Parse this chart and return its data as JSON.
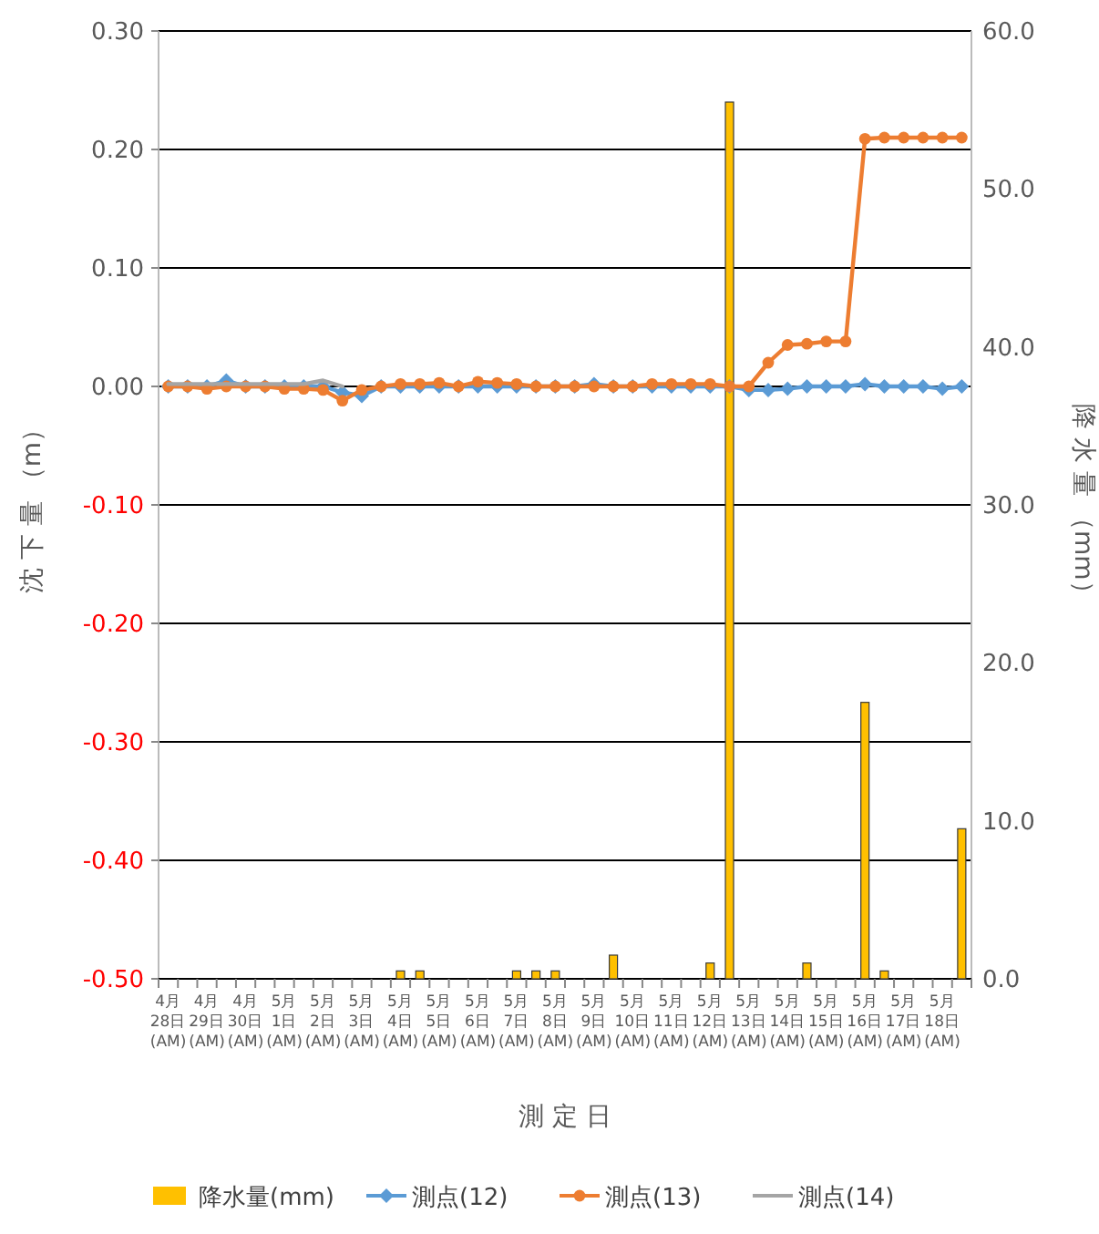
{
  "chart_data": {
    "type": "bar",
    "xlabel": "測 定 日",
    "ylabel": "沈 下 量 （m）",
    "y2label": "降 水 量 （mm）",
    "categories": [
      "4月 28日 (AM)",
      null,
      "4月 29日 (AM)",
      null,
      "4月 30日 (AM)",
      null,
      "5月 1日 (AM)",
      null,
      "5月 2日 (AM)",
      null,
      "5月 3日 (AM)",
      null,
      "5月 4日 (AM)",
      null,
      "5月 5日 (AM)",
      null,
      "5月 6日 (AM)",
      null,
      "5月 7日 (AM)",
      null,
      "5月 8日 (AM)",
      null,
      "5月 9日 (AM)",
      null,
      "5月 10日 (AM)",
      null,
      "5月 11日 (AM)",
      null,
      "5月 12日 (AM)",
      null,
      "5月 13日 (AM)",
      null,
      "5月 14日 (AM)",
      null,
      "5月 15日 (AM)",
      null,
      "5月 16日 (AM)",
      null,
      "5月 17日 (AM)",
      null,
      "5月 18日 (AM)",
      null
    ],
    "series": [
      {
        "name": "降水量(mm)",
        "axis": "y2",
        "color": "#ffc000",
        "values": [
          0,
          0,
          0,
          0,
          0,
          0,
          0,
          0,
          0,
          0,
          0,
          0,
          0.5,
          0.5,
          0,
          0,
          0,
          0,
          0.5,
          0.5,
          0.5,
          0,
          0,
          1.5,
          0,
          0,
          0,
          0,
          1,
          55.5,
          0,
          0,
          0,
          1,
          0,
          0,
          17.5,
          0.5,
          0,
          0,
          0,
          9.5
        ]
      },
      {
        "name": "測点(12)",
        "type": "line",
        "marker": "diamond",
        "color": "#5b9bd5",
        "values": [
          0,
          0,
          0,
          0.005,
          0,
          0,
          0,
          0,
          0,
          -0.005,
          -0.008,
          0,
          0,
          0,
          0,
          0,
          0,
          0,
          0,
          0,
          0,
          0,
          0.002,
          0,
          0,
          0,
          0,
          0,
          0,
          0,
          -0.003,
          -0.003,
          -0.002,
          0,
          0,
          0,
          0.002,
          0,
          0,
          0,
          -0.002,
          0
        ]
      },
      {
        "name": "測点(13)",
        "type": "line",
        "marker": "circle",
        "color": "#ed7d31",
        "values": [
          0,
          0,
          -0.002,
          0,
          0,
          0,
          -0.002,
          -0.002,
          -0.003,
          -0.012,
          -0.003,
          0,
          0.002,
          0.002,
          0.003,
          0,
          0.004,
          0.003,
          0.002,
          0,
          0,
          0,
          0,
          0,
          0,
          0.002,
          0.002,
          0.002,
          0.002,
          0,
          0,
          0.02,
          0.035,
          0.036,
          0.038,
          0.038,
          0.209,
          0.21,
          0.21,
          0.21,
          0.21,
          0.21
        ]
      },
      {
        "name": "測点(14)",
        "type": "line",
        "marker": "none",
        "color": "#a5a5a5",
        "values": [
          0.002,
          0.002,
          0.002,
          0.002,
          0.002,
          0.002,
          0.002,
          0.002,
          0.005,
          0,
          null,
          null,
          null,
          null,
          null,
          null,
          null,
          null,
          null,
          null,
          null,
          null,
          null,
          null,
          null,
          null,
          null,
          null,
          null,
          null,
          null,
          null,
          null,
          null,
          null,
          null,
          null,
          null,
          null,
          null,
          null,
          null
        ]
      }
    ],
    "ylim": [
      -0.5,
      0.3
    ],
    "yticks": [
      {
        "value": -0.5,
        "label": "-0.50"
      },
      {
        "value": -0.4,
        "label": "-0.40"
      },
      {
        "value": -0.3,
        "label": "-0.30"
      },
      {
        "value": -0.2,
        "label": "-0.20"
      },
      {
        "value": -0.1,
        "label": "-0.10"
      },
      {
        "value": 0,
        "label": "0.00"
      },
      {
        "value": 0.1,
        "label": "0.10"
      },
      {
        "value": 0.2,
        "label": "0.20"
      },
      {
        "value": 0.3,
        "label": "0.30"
      }
    ],
    "y2lim": [
      0,
      60
    ],
    "y2ticks": [
      {
        "value": 0,
        "label": "0.0"
      },
      {
        "value": 10,
        "label": "10.0"
      },
      {
        "value": 20,
        "label": "20.0"
      },
      {
        "value": 30,
        "label": "30.0"
      },
      {
        "value": 40,
        "label": "40.0"
      },
      {
        "value": 50,
        "label": "50.0"
      },
      {
        "value": 60,
        "label": "60.0"
      }
    ],
    "grid": "y",
    "legend": "bottom"
  }
}
